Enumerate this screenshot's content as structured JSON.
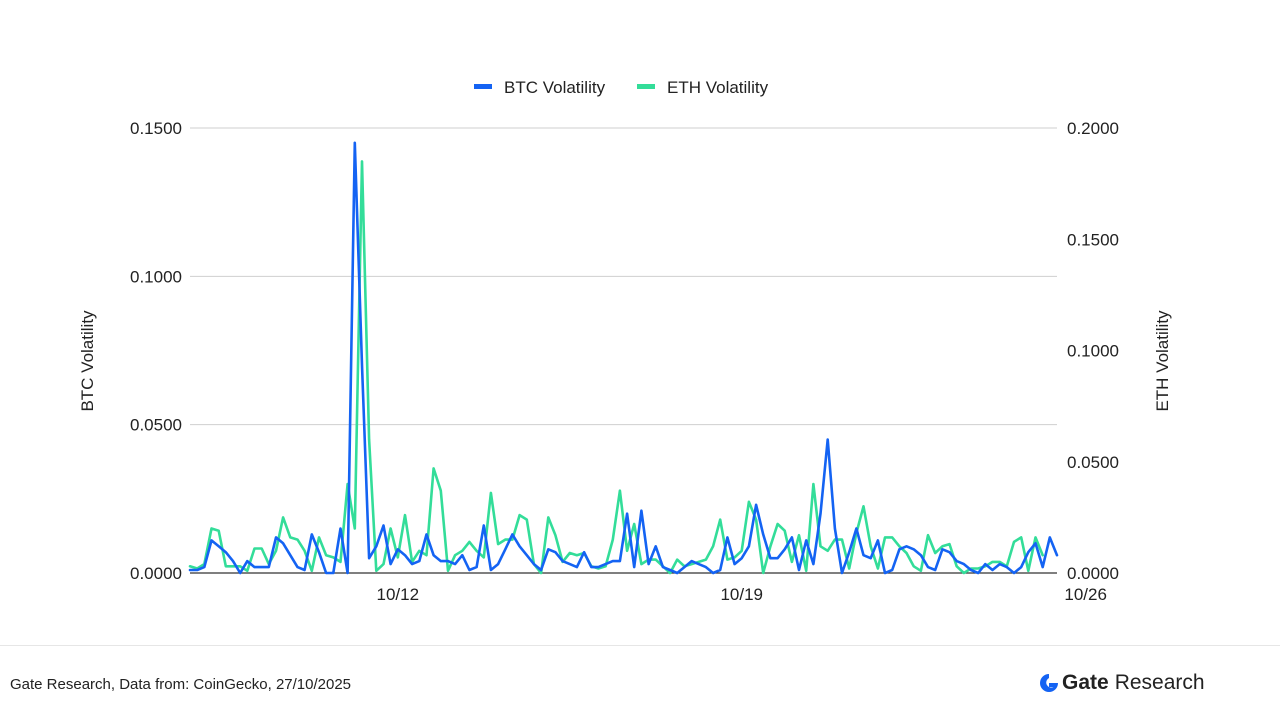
{
  "chart_data": {
    "type": "line",
    "legend": {
      "placement": "top-center",
      "entries": [
        "BTC Volatility",
        "ETH Volatility"
      ]
    },
    "x_tick_labels": [
      "10/12",
      "10/19",
      "10/26"
    ],
    "x_tick_index": [
      29,
      77,
      125
    ],
    "grid": true,
    "y_left": {
      "label": "BTC Volatility",
      "range": [
        0,
        0.15
      ],
      "ticks": [
        "0.0000",
        "0.0500",
        "0.1000",
        "0.1500"
      ]
    },
    "y_right": {
      "label": "ETH Volatility",
      "range": [
        0,
        0.2
      ],
      "ticks": [
        "0.0000",
        "0.0500",
        "0.1000",
        "0.1500",
        "0.2000"
      ]
    },
    "series": [
      {
        "name": "BTC Volatility",
        "axis": "left",
        "color": "#1463f3",
        "values": [
          0.001,
          0.001,
          0.002,
          0.011,
          0.009,
          0.007,
          0.004,
          0.0,
          0.004,
          0.002,
          0.002,
          0.002,
          0.012,
          0.01,
          0.006,
          0.002,
          0.001,
          0.013,
          0.007,
          0.0,
          0.0,
          0.015,
          0.0,
          0.145,
          0.07,
          0.005,
          0.009,
          0.016,
          0.003,
          0.008,
          0.006,
          0.003,
          0.004,
          0.013,
          0.006,
          0.004,
          0.004,
          0.003,
          0.006,
          0.001,
          0.002,
          0.016,
          0.001,
          0.003,
          0.008,
          0.013,
          0.009,
          0.006,
          0.003,
          0.001,
          0.008,
          0.007,
          0.004,
          0.003,
          0.002,
          0.007,
          0.002,
          0.002,
          0.003,
          0.004,
          0.004,
          0.02,
          0.002,
          0.021,
          0.003,
          0.009,
          0.002,
          0.001,
          0.0,
          0.002,
          0.004,
          0.003,
          0.002,
          0.0,
          0.001,
          0.012,
          0.003,
          0.005,
          0.009,
          0.023,
          0.013,
          0.005,
          0.005,
          0.008,
          0.012,
          0.001,
          0.011,
          0.003,
          0.02,
          0.045,
          0.015,
          0.0,
          0.007,
          0.015,
          0.006,
          0.005,
          0.011,
          0.0,
          0.001,
          0.008,
          0.009,
          0.008,
          0.006,
          0.002,
          0.001,
          0.008,
          0.007,
          0.004,
          0.003,
          0.001,
          0.0,
          0.003,
          0.001,
          0.003,
          0.002,
          0.0,
          0.002,
          0.007,
          0.01,
          0.002,
          0.012,
          0.006
        ]
      },
      {
        "name": "ETH Volatility",
        "axis": "right",
        "color": "#33dd99",
        "values": [
          0.003,
          0.002,
          0.004,
          0.02,
          0.019,
          0.003,
          0.003,
          0.003,
          0.001,
          0.011,
          0.011,
          0.004,
          0.01,
          0.025,
          0.016,
          0.015,
          0.01,
          0.001,
          0.016,
          0.008,
          0.007,
          0.005,
          0.04,
          0.02,
          0.185,
          0.06,
          0.001,
          0.004,
          0.02,
          0.007,
          0.026,
          0.005,
          0.01,
          0.008,
          0.047,
          0.037,
          0.001,
          0.008,
          0.01,
          0.014,
          0.01,
          0.007,
          0.036,
          0.013,
          0.015,
          0.015,
          0.026,
          0.024,
          0.004,
          0.0,
          0.025,
          0.017,
          0.005,
          0.009,
          0.008,
          0.009,
          0.003,
          0.002,
          0.003,
          0.015,
          0.037,
          0.01,
          0.022,
          0.004,
          0.006,
          0.006,
          0.003,
          0.0,
          0.006,
          0.003,
          0.004,
          0.005,
          0.006,
          0.012,
          0.024,
          0.006,
          0.007,
          0.01,
          0.032,
          0.024,
          0.0,
          0.012,
          0.022,
          0.019,
          0.005,
          0.017,
          0.001,
          0.04,
          0.012,
          0.01,
          0.015,
          0.015,
          0.002,
          0.018,
          0.03,
          0.012,
          0.002,
          0.016,
          0.016,
          0.012,
          0.009,
          0.003,
          0.001,
          0.017,
          0.009,
          0.012,
          0.013,
          0.003,
          0.0,
          0.002,
          0.002,
          0.003,
          0.005,
          0.005,
          0.003,
          0.014,
          0.016,
          0.001,
          0.016,
          0.008
        ]
      }
    ]
  },
  "footer": {
    "source": "Gate Research, Data from: CoinGecko, 27/10/2025",
    "brand_name": "Gate",
    "brand_suffix": "Research",
    "brand_color": "#1463f3"
  }
}
